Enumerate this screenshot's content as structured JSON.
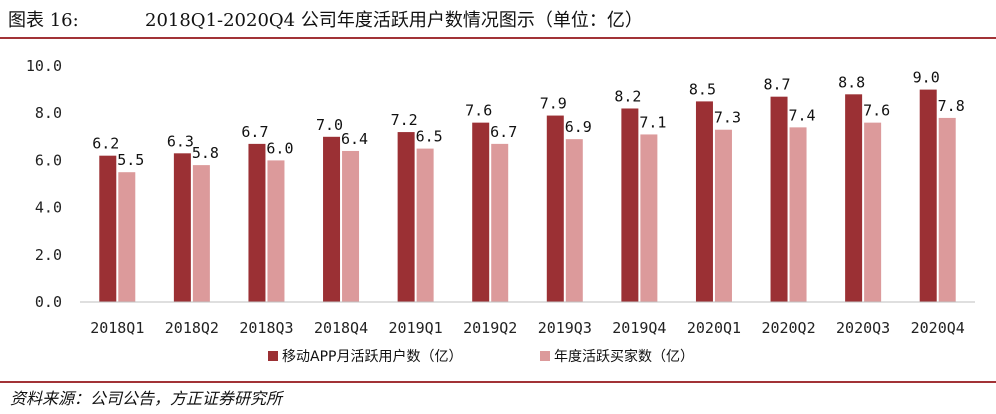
{
  "header": {
    "figure_label": "图表 16:",
    "title": "2018Q1-2020Q4 公司年度活跃用户数情况图示（单位：亿）"
  },
  "footer": {
    "source": "资料来源：公司公告，方正证券研究所"
  },
  "chart_data": {
    "type": "bar",
    "categories": [
      "2018Q1",
      "2018Q2",
      "2018Q3",
      "2018Q4",
      "2019Q1",
      "2019Q2",
      "2019Q3",
      "2019Q4",
      "2020Q1",
      "2020Q2",
      "2020Q3",
      "2020Q4"
    ],
    "series": [
      {
        "name": "移动APP月活跃用户数（亿）",
        "color": "#9b3034",
        "values": [
          6.2,
          6.3,
          6.7,
          7.0,
          7.2,
          7.6,
          7.9,
          8.2,
          8.5,
          8.7,
          8.8,
          9.0
        ],
        "labels": [
          "6.2",
          "6.3",
          "6.7",
          "7.0",
          "7.2",
          "7.6",
          "7.9",
          "8.2",
          "8.5",
          "8.7",
          "8.8",
          "9.0"
        ]
      },
      {
        "name": "年度活跃买家数（亿）",
        "color": "#dc9a9b",
        "values": [
          5.5,
          5.8,
          6.0,
          6.4,
          6.5,
          6.7,
          6.9,
          7.1,
          7.3,
          7.4,
          7.6,
          7.8
        ],
        "labels": [
          "5.5",
          "5.8",
          "6.0",
          "6.4",
          "6.5",
          "6.7",
          "6.9",
          "7.1",
          "7.3",
          "7.4",
          "7.6",
          "7.8"
        ]
      }
    ],
    "ylim": [
      0,
      10
    ],
    "yticks": [
      0,
      2,
      4,
      6,
      8,
      10
    ],
    "ytick_labels": [
      "0.0",
      "2.0",
      "4.0",
      "6.0",
      "8.0",
      "10.0"
    ],
    "grid": false,
    "legend": "bottom-center"
  }
}
